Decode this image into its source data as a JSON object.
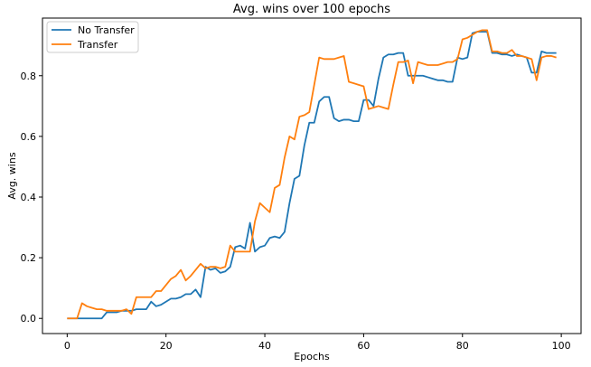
{
  "chart_data": {
    "type": "line",
    "title": "Avg. wins over 100 epochs",
    "xlabel": "Epochs",
    "ylabel": "Avg. wins",
    "xlim": [
      -5,
      104
    ],
    "ylim": [
      -0.05,
      0.99
    ],
    "x_ticks": [
      0,
      20,
      40,
      60,
      80,
      100
    ],
    "y_ticks": [
      0.0,
      0.2,
      0.4,
      0.6,
      0.8
    ],
    "x_tick_labels": [
      "0",
      "20",
      "40",
      "60",
      "80",
      "100"
    ],
    "y_tick_labels": [
      "0.0",
      "0.2",
      "0.4",
      "0.6",
      "0.8"
    ],
    "grid": false,
    "legend_position": "top-left",
    "x": [
      0,
      1,
      2,
      3,
      4,
      5,
      6,
      7,
      8,
      9,
      10,
      11,
      12,
      13,
      14,
      15,
      16,
      17,
      18,
      19,
      20,
      21,
      22,
      23,
      24,
      25,
      26,
      27,
      28,
      29,
      30,
      31,
      32,
      33,
      34,
      35,
      36,
      37,
      38,
      39,
      40,
      41,
      42,
      43,
      44,
      45,
      46,
      47,
      48,
      49,
      50,
      51,
      52,
      53,
      54,
      55,
      56,
      57,
      58,
      59,
      60,
      61,
      62,
      63,
      64,
      65,
      66,
      67,
      68,
      69,
      70,
      71,
      72,
      73,
      74,
      75,
      76,
      77,
      78,
      79,
      80,
      81,
      82,
      83,
      84,
      85,
      86,
      87,
      88,
      89,
      90,
      91,
      92,
      93,
      94,
      95,
      96,
      97,
      98,
      99
    ],
    "series": [
      {
        "name": "No Transfer",
        "color": "#1f77b4",
        "values": [
          0,
          0,
          0,
          0,
          0,
          0,
          0,
          0,
          0.02,
          0.02,
          0.02,
          0.025,
          0.025,
          0.025,
          0.03,
          0.03,
          0.03,
          0.055,
          0.04,
          0.045,
          0.055,
          0.065,
          0.065,
          0.07,
          0.08,
          0.08,
          0.095,
          0.07,
          0.17,
          0.16,
          0.165,
          0.15,
          0.155,
          0.17,
          0.235,
          0.24,
          0.23,
          0.315,
          0.22,
          0.235,
          0.24,
          0.265,
          0.27,
          0.265,
          0.285,
          0.38,
          0.46,
          0.47,
          0.57,
          0.645,
          0.645,
          0.715,
          0.73,
          0.73,
          0.66,
          0.65,
          0.655,
          0.655,
          0.65,
          0.65,
          0.72,
          0.72,
          0.7,
          0.79,
          0.86,
          0.87,
          0.87,
          0.875,
          0.875,
          0.8,
          0.8,
          0.8,
          0.8,
          0.795,
          0.79,
          0.785,
          0.785,
          0.78,
          0.78,
          0.86,
          0.855,
          0.86,
          0.94,
          0.945,
          0.945,
          0.945,
          0.875,
          0.875,
          0.87,
          0.87,
          0.865,
          0.87,
          0.865,
          0.86,
          0.81,
          0.81,
          0.88,
          0.875,
          0.875,
          0.875
        ]
      },
      {
        "name": "Transfer",
        "color": "#ff7f0e",
        "values": [
          0,
          0,
          0,
          0.05,
          0.04,
          0.035,
          0.03,
          0.03,
          0.025,
          0.025,
          0.025,
          0.025,
          0.03,
          0.015,
          0.07,
          0.07,
          0.07,
          0.07,
          0.09,
          0.09,
          0.11,
          0.13,
          0.14,
          0.16,
          0.125,
          0.14,
          0.16,
          0.18,
          0.165,
          0.17,
          0.17,
          0.165,
          0.17,
          0.24,
          0.22,
          0.22,
          0.22,
          0.22,
          0.32,
          0.38,
          0.365,
          0.35,
          0.43,
          0.44,
          0.53,
          0.6,
          0.59,
          0.665,
          0.67,
          0.68,
          0.77,
          0.86,
          0.855,
          0.855,
          0.855,
          0.86,
          0.865,
          0.78,
          0.775,
          0.77,
          0.765,
          0.69,
          0.695,
          0.7,
          0.695,
          0.69,
          0.77,
          0.845,
          0.845,
          0.85,
          0.775,
          0.845,
          0.84,
          0.835,
          0.835,
          0.835,
          0.84,
          0.845,
          0.845,
          0.855,
          0.92,
          0.925,
          0.935,
          0.945,
          0.95,
          0.95,
          0.88,
          0.88,
          0.875,
          0.875,
          0.885,
          0.865,
          0.865,
          0.86,
          0.855,
          0.785,
          0.86,
          0.865,
          0.865,
          0.86
        ]
      }
    ]
  }
}
